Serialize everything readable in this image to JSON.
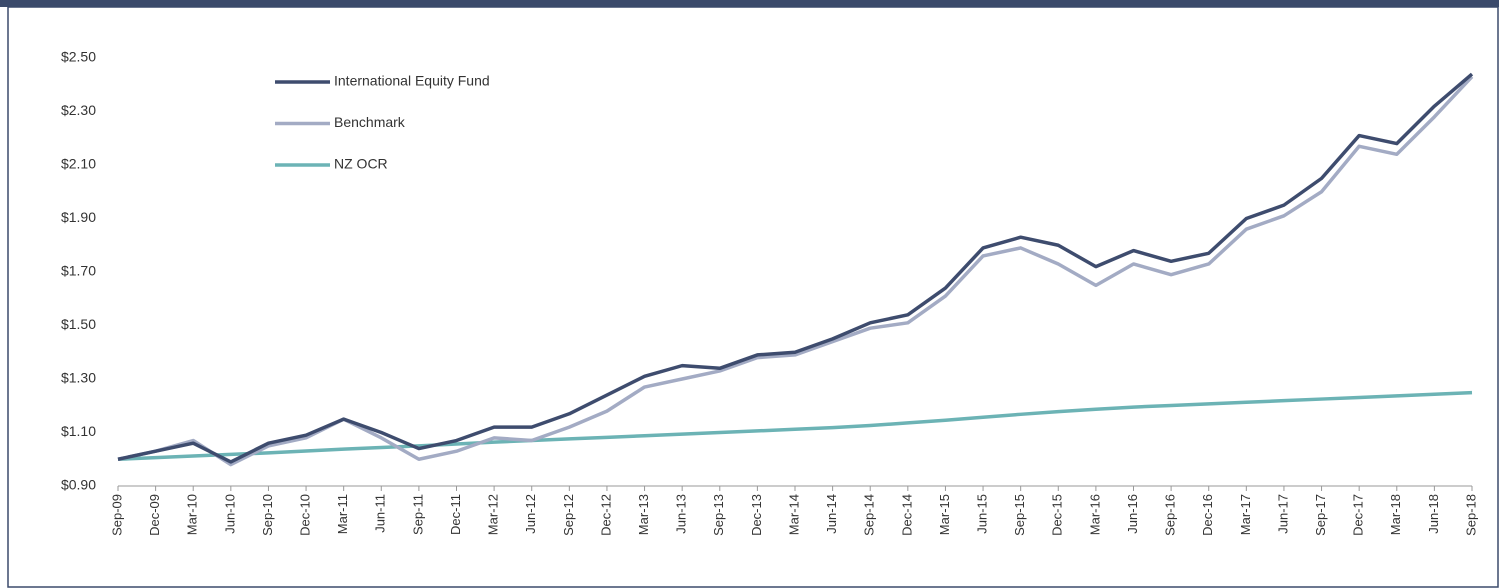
{
  "chart_data": {
    "type": "line",
    "categories": [
      "Sep-09",
      "Dec-09",
      "Mar-10",
      "Jun-10",
      "Sep-10",
      "Dec-10",
      "Mar-11",
      "Jun-11",
      "Sep-11",
      "Dec-11",
      "Mar-12",
      "Jun-12",
      "Sep-12",
      "Dec-12",
      "Mar-13",
      "Jun-13",
      "Sep-13",
      "Dec-13",
      "Mar-14",
      "Jun-14",
      "Sep-14",
      "Dec-14",
      "Mar-15",
      "Jun-15",
      "Sep-15",
      "Dec-15",
      "Mar-16",
      "Jun-16",
      "Sep-16",
      "Dec-16",
      "Mar-17",
      "Jun-17",
      "Sep-17",
      "Dec-17",
      "Mar-18",
      "Jun-18",
      "Sep-18"
    ],
    "series": [
      {
        "name": "International Equity Fund",
        "color": "#3e4c6e",
        "values": [
          1.0,
          1.03,
          1.06,
          0.99,
          1.06,
          1.09,
          1.15,
          1.1,
          1.04,
          1.07,
          1.12,
          1.12,
          1.17,
          1.24,
          1.31,
          1.35,
          1.34,
          1.39,
          1.4,
          1.45,
          1.51,
          1.54,
          1.64,
          1.79,
          1.83,
          1.8,
          1.72,
          1.78,
          1.74,
          1.77,
          1.9,
          1.95,
          2.05,
          2.21,
          2.18,
          2.32,
          2.44
        ]
      },
      {
        "name": "Benchmark",
        "color": "#a3abc4",
        "values": [
          1.0,
          1.03,
          1.07,
          0.98,
          1.05,
          1.08,
          1.15,
          1.08,
          1.0,
          1.03,
          1.08,
          1.07,
          1.12,
          1.18,
          1.27,
          1.3,
          1.33,
          1.38,
          1.39,
          1.44,
          1.49,
          1.51,
          1.61,
          1.76,
          1.79,
          1.73,
          1.65,
          1.73,
          1.69,
          1.73,
          1.86,
          1.91,
          2.0,
          2.17,
          2.14,
          2.28,
          2.43
        ]
      },
      {
        "name": "NZ OCR",
        "color": "#6cb3b5",
        "values": [
          1.0,
          1.006,
          1.012,
          1.018,
          1.024,
          1.031,
          1.038,
          1.044,
          1.05,
          1.057,
          1.064,
          1.07,
          1.076,
          1.082,
          1.088,
          1.094,
          1.1,
          1.106,
          1.112,
          1.118,
          1.126,
          1.136,
          1.146,
          1.157,
          1.168,
          1.178,
          1.187,
          1.195,
          1.201,
          1.207,
          1.213,
          1.219,
          1.225,
          1.231,
          1.237,
          1.243,
          1.249
        ]
      }
    ],
    "ylim": [
      0.9,
      2.5
    ],
    "yticks": [
      {
        "value": 0.9,
        "label": "$0.90"
      },
      {
        "value": 1.1,
        "label": "$1.10"
      },
      {
        "value": 1.3,
        "label": "$1.30"
      },
      {
        "value": 1.5,
        "label": "$1.50"
      },
      {
        "value": 1.7,
        "label": "$1.70"
      },
      {
        "value": 1.9,
        "label": "$1.90"
      },
      {
        "value": 2.1,
        "label": "$2.10"
      },
      {
        "value": 2.3,
        "label": "$2.30"
      },
      {
        "value": 2.5,
        "label": "$2.50"
      }
    ],
    "grid": false,
    "legend": "upper left"
  }
}
